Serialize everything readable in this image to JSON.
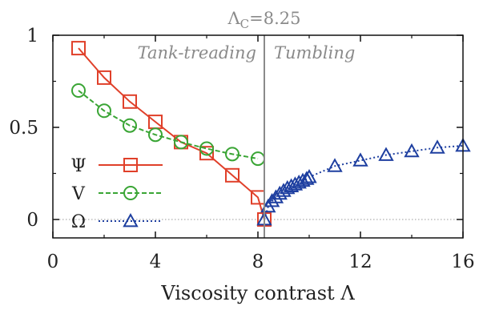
{
  "chart_data": {
    "type": "line",
    "xlabel": "Viscosity contrast Λ",
    "ylabel": "",
    "xlim": [
      0,
      16
    ],
    "ylim": [
      -0.1,
      1.0
    ],
    "x_ticks": [
      "0",
      "4",
      "8",
      "12",
      "16"
    ],
    "x_tick_values": [
      0,
      4,
      8,
      12,
      16
    ],
    "y_ticks": [
      "0",
      "0.5",
      "1"
    ],
    "y_tick_values": [
      0,
      0.5,
      1
    ],
    "critical_label": "Λ",
    "critical_subscript": "C",
    "critical_value_text": "=8.25",
    "critical_x": 8.25,
    "region_labels": {
      "left": "Tank-treading",
      "right": "Tumbling"
    },
    "legend_position": "left",
    "series": [
      {
        "name": "Ψ",
        "marker": "square",
        "line": "solid",
        "color": "#e0402a",
        "points": [
          [
            1,
            0.93
          ],
          [
            2,
            0.77
          ],
          [
            3,
            0.64
          ],
          [
            4,
            0.53
          ],
          [
            5,
            0.42
          ],
          [
            6,
            0.36
          ],
          [
            7,
            0.24
          ],
          [
            8,
            0.12
          ],
          [
            8.25,
            0.0
          ]
        ]
      },
      {
        "name": "V",
        "marker": "circle",
        "line": "dashed",
        "color": "#3aa535",
        "points": [
          [
            1,
            0.7
          ],
          [
            2,
            0.59
          ],
          [
            3,
            0.51
          ],
          [
            4,
            0.46
          ],
          [
            5,
            0.42
          ],
          [
            6,
            0.385
          ],
          [
            7,
            0.355
          ],
          [
            8,
            0.33
          ]
        ]
      },
      {
        "name": "Ω",
        "marker": "triangle",
        "line": "dotted",
        "color": "#1e3fa0",
        "points": [
          [
            8.25,
            0.0
          ],
          [
            8.4,
            0.07
          ],
          [
            8.55,
            0.1
          ],
          [
            8.7,
            0.12
          ],
          [
            8.85,
            0.14
          ],
          [
            9.0,
            0.155
          ],
          [
            9.15,
            0.17
          ],
          [
            9.3,
            0.18
          ],
          [
            9.45,
            0.19
          ],
          [
            9.6,
            0.2
          ],
          [
            9.75,
            0.21
          ],
          [
            9.9,
            0.22
          ],
          [
            10.0,
            0.23
          ],
          [
            11,
            0.29
          ],
          [
            12,
            0.32
          ],
          [
            13,
            0.35
          ],
          [
            14,
            0.37
          ],
          [
            15,
            0.39
          ],
          [
            16,
            0.4
          ]
        ]
      }
    ]
  }
}
